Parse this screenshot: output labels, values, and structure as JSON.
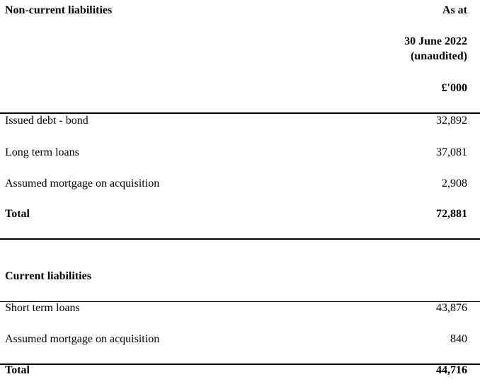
{
  "sections": [
    {
      "title": "Non-current liabilities",
      "header": [
        "As at",
        "30 June 2022",
        "(unaudited)",
        "£'000"
      ],
      "rows": [
        {
          "label": "Issued debt - bond",
          "value": "32,892"
        },
        {
          "label": "Long term loans",
          "value": "37,081"
        },
        {
          "label": "Assumed mortgage on acquisition",
          "value": "2,908"
        }
      ],
      "total": {
        "label": "Total",
        "value": "72,881"
      }
    },
    {
      "title": "Current liabilities",
      "rows": [
        {
          "label": "Short term loans",
          "value": "43,876"
        },
        {
          "label": "Assumed mortgage on acquisition",
          "value": "840"
        }
      ],
      "total": {
        "label": "Total",
        "value": "44,716"
      }
    }
  ]
}
